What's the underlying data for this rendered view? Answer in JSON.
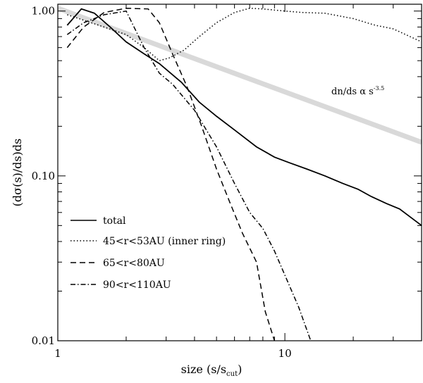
{
  "chart_data": {
    "type": "line",
    "title": "",
    "xlabel": "size (s/s",
    "xlabel_sub": "cut",
    "xlabel_end": ")",
    "ylabel": "(dσ(s)/ds)ds",
    "xscale": "log",
    "yscale": "log",
    "xlim": [
      1,
      40
    ],
    "ylim": [
      0.01,
      1.1
    ],
    "x_ticks": [
      {
        "value": 1,
        "label": "1"
      },
      {
        "value": 10,
        "label": "10"
      }
    ],
    "y_ticks": [
      {
        "value": 0.01,
        "label": "0.01"
      },
      {
        "value": 0.1,
        "label": "0.10"
      },
      {
        "value": 1,
        "label": "1.00"
      }
    ],
    "legend_position": "bottom-left",
    "series": [
      {
        "name": "total",
        "style": "solid",
        "color": "#000000",
        "x": [
          1.1,
          1.27,
          1.45,
          1.7,
          2.0,
          2.4,
          2.8,
          3.5,
          4.2,
          5.0,
          6.0,
          7.5,
          9.0,
          10.5,
          12.5,
          15,
          18,
          21,
          24,
          28,
          32,
          40
        ],
        "y": [
          0.82,
          1.03,
          0.97,
          0.8,
          0.65,
          0.55,
          0.48,
          0.37,
          0.28,
          0.23,
          0.19,
          0.15,
          0.13,
          0.12,
          0.11,
          0.1,
          0.09,
          0.083,
          0.075,
          0.068,
          0.063,
          0.05
        ]
      },
      {
        "name": "45<r<53AU (inner ring)",
        "style": "dotted",
        "color": "#000000",
        "x": [
          1.1,
          1.3,
          1.6,
          2.0,
          2.4,
          2.8,
          3.1,
          3.6,
          4.2,
          5.0,
          6.0,
          7.0,
          8.0,
          10.0,
          12.0,
          15.0,
          20.0,
          25.0,
          30.0,
          40.0
        ],
        "y": [
          0.95,
          0.88,
          0.8,
          0.72,
          0.6,
          0.5,
          0.52,
          0.58,
          0.7,
          0.85,
          0.98,
          1.04,
          1.03,
          1.0,
          0.98,
          0.97,
          0.9,
          0.82,
          0.78,
          0.65
        ]
      },
      {
        "name": "65<r<80AU",
        "style": "dashed",
        "color": "#000000",
        "x": [
          1.1,
          1.3,
          1.6,
          2.0,
          2.5,
          2.8,
          3.2,
          3.7,
          4.3,
          5.0,
          5.7,
          6.5,
          7.5,
          8.2,
          9.0
        ],
        "y": [
          0.6,
          0.8,
          0.98,
          1.04,
          1.03,
          0.85,
          0.55,
          0.35,
          0.2,
          0.11,
          0.07,
          0.045,
          0.03,
          0.015,
          0.01
        ]
      },
      {
        "name": "90<r<110AU",
        "style": "dashdot",
        "color": "#000000",
        "x": [
          1.1,
          1.3,
          1.6,
          2.0,
          2.4,
          2.8,
          3.2,
          4.0,
          5.0,
          6.0,
          7.0,
          8.0,
          9.0,
          10.0,
          11.5,
          13.0
        ],
        "y": [
          0.72,
          0.85,
          0.95,
          1.0,
          0.6,
          0.42,
          0.36,
          0.25,
          0.15,
          0.09,
          0.06,
          0.048,
          0.035,
          0.025,
          0.016,
          0.01
        ]
      }
    ],
    "reference_line": {
      "label_main": "dn/ds α s",
      "label_exponent": "-3.5",
      "style": "thick",
      "color": "#d9d9d9",
      "x": [
        1,
        40
      ],
      "y": [
        1.04,
        0.16
      ]
    }
  }
}
